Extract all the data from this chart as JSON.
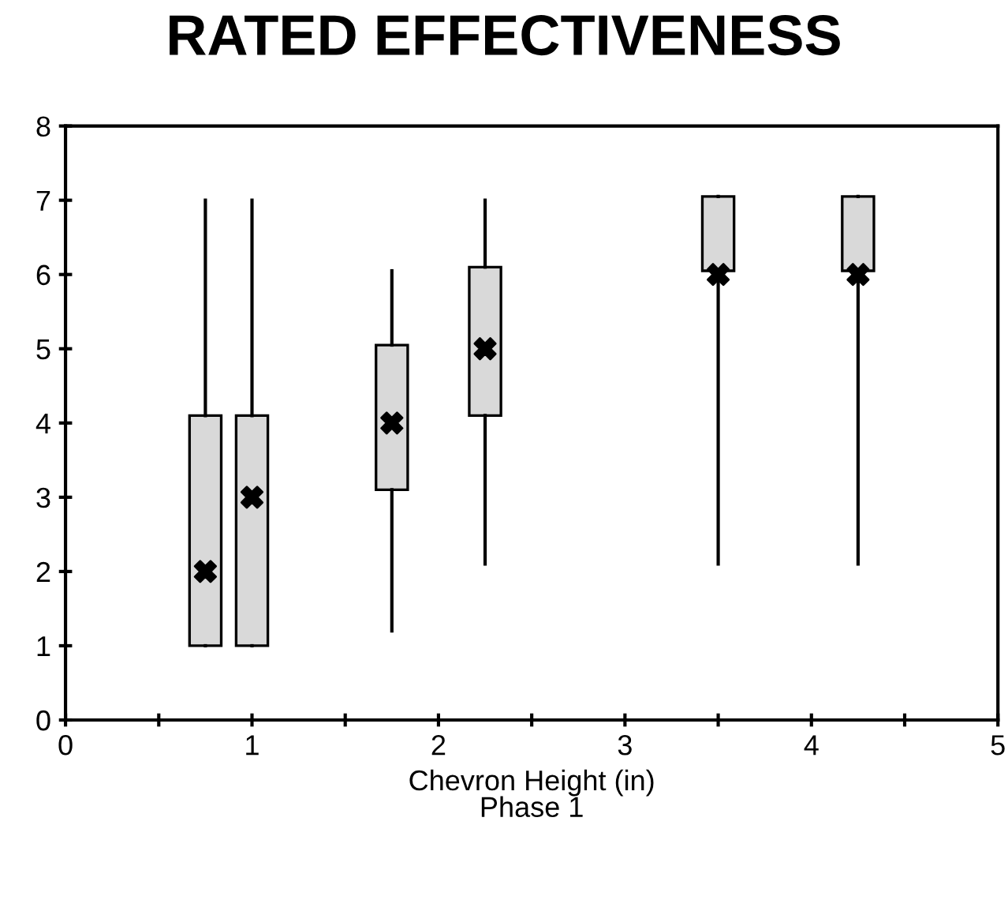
{
  "chart_data": {
    "type": "box",
    "title": "RATED EFFECTIVENESS",
    "xlabel": "Chevron Height (in)\nPhase 1",
    "x": [
      0.75,
      1.0,
      1.75,
      2.25,
      3.5,
      4.25
    ],
    "boxes": [
      {
        "low": 1,
        "q1": 1,
        "median": 2,
        "q3": 4.1,
        "high": 7
      },
      {
        "low": 1,
        "q1": 1,
        "median": 3,
        "q3": 4.1,
        "high": 7
      },
      {
        "low": 1.2,
        "q1": 3.1,
        "median": 4,
        "q3": 5.05,
        "high": 6.05
      },
      {
        "low": 2.1,
        "q1": 4.1,
        "median": 5,
        "q3": 6.1,
        "high": 7
      },
      {
        "low": 2.1,
        "q1": 6.05,
        "median": 6,
        "q3": 7.05,
        "high": 7.05
      },
      {
        "low": 2.1,
        "q1": 6.05,
        "median": 6,
        "q3": 7.05,
        "high": 7.05
      }
    ],
    "color": "#d9d9d9",
    "xlim": [
      0,
      5
    ],
    "xticks": [
      0,
      {
        "value": 0.5,
        "label": null
      },
      1,
      {
        "value": 1.5,
        "label": null
      },
      2,
      {
        "value": 2.5,
        "label": null
      },
      3,
      {
        "value": 3.5,
        "label": null
      },
      4,
      {
        "value": 4.5,
        "label": null
      },
      5
    ],
    "ylim": [
      0,
      8
    ],
    "yticks": [
      0,
      1,
      2,
      3,
      4,
      5,
      6,
      7,
      8
    ],
    "grid": false,
    "legend": false
  }
}
